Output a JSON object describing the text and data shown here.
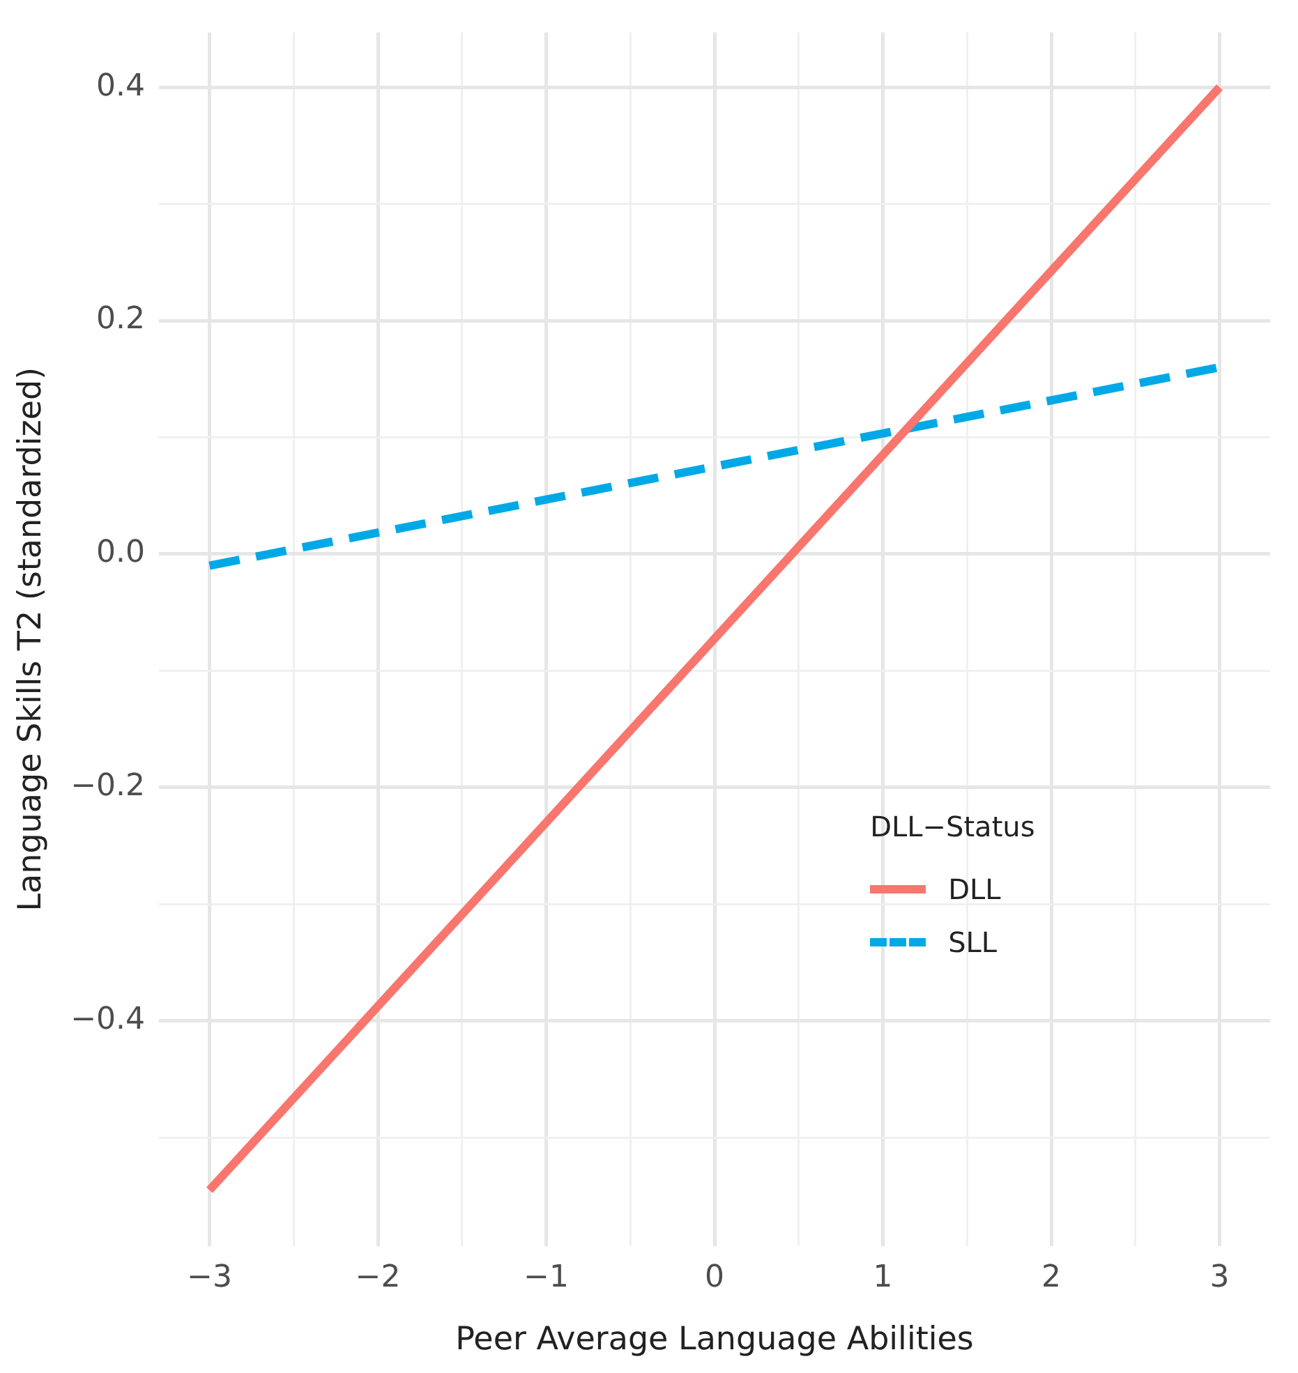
{
  "chart_data": {
    "type": "line",
    "xlabel": "Peer Average Language Abilities",
    "ylabel": "Language Skills T2 (standardized)",
    "legend_title": "DLL−Status",
    "x": [
      -3,
      3
    ],
    "series": [
      {
        "name": "DLL",
        "color": "#f8766d",
        "values": [
          -0.545,
          0.4
        ],
        "line_style": "solid"
      },
      {
        "name": "SLL",
        "color": "#00a9e6",
        "values": [
          -0.01,
          0.16
        ],
        "line_style": "dashed"
      }
    ],
    "xlim": [
      -3.3,
      3.3
    ],
    "ylim": [
      -0.593,
      0.447
    ],
    "xticks": [
      -3,
      {
        "value": -2.5,
        "label": null
      },
      -2,
      {
        "value": -1.5,
        "label": null
      },
      -1,
      {
        "value": -0.5,
        "label": null
      },
      0,
      {
        "value": 0.5,
        "label": null
      },
      1,
      {
        "value": 1.5,
        "label": null
      },
      2,
      {
        "value": 2.5,
        "label": null
      },
      3
    ],
    "yticks": [
      {
        "value": -0.5,
        "label": null
      },
      {
        "value": -0.4,
        "label": "−0.4"
      },
      {
        "value": -0.3,
        "label": null
      },
      {
        "value": -0.2,
        "label": "−0.2"
      },
      {
        "value": -0.1,
        "label": null
      },
      {
        "value": 0,
        "label": "0.0"
      },
      {
        "value": 0.1,
        "label": null
      },
      {
        "value": 0.2,
        "label": "0.2"
      },
      {
        "value": 0.3,
        "label": null
      },
      {
        "value": 0.4,
        "label": "0.4"
      }
    ],
    "grid": true,
    "legend": "bottom right",
    "marker": "none"
  }
}
